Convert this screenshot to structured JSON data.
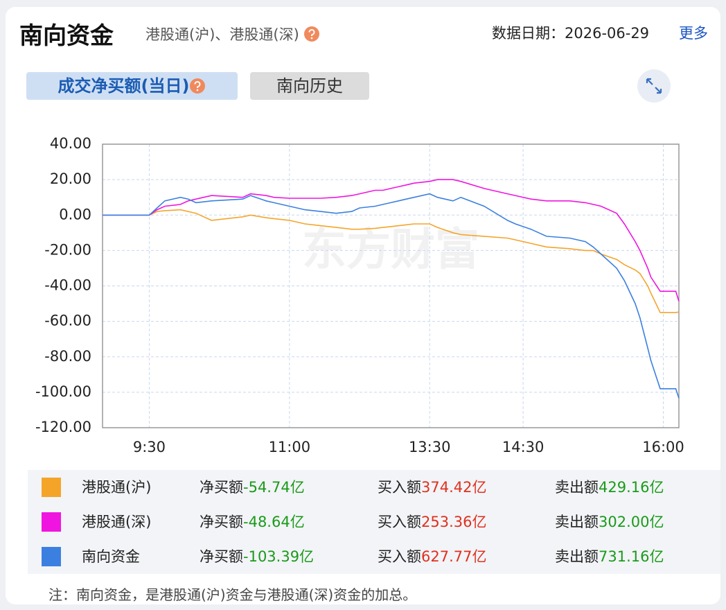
{
  "header": {
    "title": "南向资金",
    "subtitle": "港股通(沪)、港股通(深)",
    "date": "数据日期：2026-06-29",
    "more": "更多"
  },
  "tabs": [
    "成交净买额(当日)",
    "南向历史"
  ],
  "chart_data": {
    "type": "line",
    "watermark": "东方财富",
    "grid": true,
    "x": [
      0,
      30,
      35,
      40,
      50,
      55,
      60,
      70,
      90,
      95,
      105,
      110,
      120,
      130,
      140,
      150,
      160,
      165,
      175,
      180,
      185,
      190,
      195,
      200,
      210,
      215,
      225,
      230,
      245,
      260,
      265,
      275,
      285,
      300,
      310,
      315,
      320,
      330,
      335,
      342,
      345,
      350,
      352,
      358,
      365,
      368,
      370
    ],
    "xlim": [
      0,
      370
    ],
    "xticks": [
      {
        "value": 30,
        "label": "9:30"
      },
      {
        "value": 120,
        "label": "11:00"
      },
      {
        "value": 210,
        "label": "13:30"
      },
      {
        "value": 270,
        "label": "14:30"
      },
      {
        "value": 360,
        "label": "16:00"
      }
    ],
    "ylim": [
      -120,
      40
    ],
    "yticks": [
      {
        "value": 40,
        "label": "40.00"
      },
      {
        "value": 20,
        "label": "20.00"
      },
      {
        "value": 0,
        "label": "0.00"
      },
      {
        "value": -20,
        "label": "-20.00"
      },
      {
        "value": -40,
        "label": "-40.00"
      },
      {
        "value": -60,
        "label": "-60.00"
      },
      {
        "value": -80,
        "label": "-80.00"
      },
      {
        "value": -100,
        "label": "-100.00"
      },
      {
        "value": -120,
        "label": "-120.00"
      }
    ],
    "series": [
      {
        "name": "港股通(沪)",
        "color": "#f5a42a",
        "values": [
          0,
          0,
          2,
          2.5,
          3,
          2,
          1,
          -3,
          -1,
          0,
          -1.5,
          -2,
          -3,
          -5,
          -6,
          -7,
          -8,
          -8,
          -7.5,
          -7,
          -6.5,
          -6,
          -5.5,
          -5,
          -5,
          -7,
          -10,
          -11,
          -12,
          -13,
          -14,
          -16,
          -18,
          -19,
          -20,
          -20,
          -22,
          -25,
          -28,
          -31,
          -33,
          -40,
          -44,
          -55,
          -55,
          -55,
          -54.74
        ]
      },
      {
        "name": "港股通(深)",
        "color": "#f014e0",
        "values": [
          0,
          0,
          3,
          5,
          6,
          8,
          9,
          11,
          10,
          12,
          11,
          10,
          9.5,
          9.5,
          9.5,
          10,
          11,
          12,
          14,
          14,
          15,
          16,
          17,
          18,
          19,
          20,
          20,
          19,
          15,
          12,
          11,
          9,
          8,
          8,
          7,
          6,
          5,
          1,
          -5,
          -15,
          -20,
          -30,
          -35,
          -43,
          -43,
          -43,
          -48.64
        ]
      },
      {
        "name": "南向资金",
        "color": "#3b80e0",
        "values": [
          0,
          0,
          4,
          8,
          10,
          9,
          7,
          8,
          9,
          11,
          8,
          7,
          5,
          3,
          2,
          1,
          2,
          4,
          5,
          6,
          7,
          8,
          9,
          10,
          12,
          10,
          8,
          10,
          5,
          -3,
          -5,
          -8,
          -12,
          -13,
          -15,
          -18,
          -22,
          -30,
          -37,
          -50,
          -58,
          -75,
          -82,
          -98,
          -98,
          -98,
          -103.39
        ]
      }
    ]
  },
  "summary": {
    "rows": [
      {
        "net_label": "净买额",
        "net": "-54.74亿",
        "buy_label": "买入额",
        "buy": "374.42亿",
        "sell_label": "卖出额",
        "sell": "429.16亿"
      },
      {
        "net_label": "净买额",
        "net": "-48.64亿",
        "buy_label": "买入额",
        "buy": "253.36亿",
        "sell_label": "卖出额",
        "sell": "302.00亿"
      },
      {
        "net_label": "净买额",
        "net": "-103.39亿",
        "buy_label": "买入额",
        "buy": "627.77亿",
        "sell_label": "卖出额",
        "sell": "731.16亿"
      }
    ]
  },
  "note": "注：南向资金，是港股通(沪)资金与港股通(深)资金的加总。"
}
